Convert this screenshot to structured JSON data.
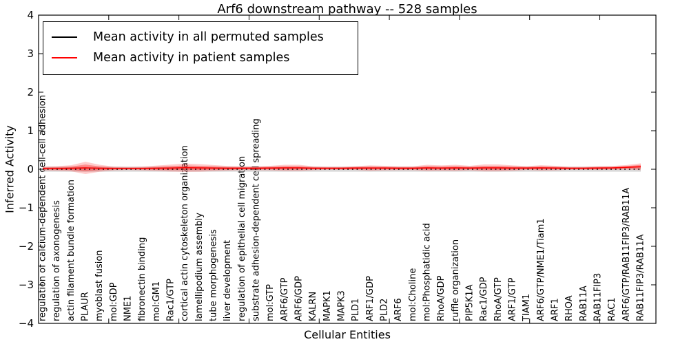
{
  "title": "Arf6 downstream pathway -- 528 samples",
  "xlabel": "Cellular Entities",
  "ylabel": "Inferred Activity",
  "legend": {
    "items": [
      {
        "label": "Mean activity in all permuted samples",
        "color": "#000000"
      },
      {
        "label": "Mean activity in patient samples",
        "color": "#ff0000"
      }
    ]
  },
  "chart_data": {
    "type": "line",
    "title": "Arf6 downstream pathway -- 528 samples",
    "xlabel": "Cellular Entities",
    "ylabel": "Inferred Activity",
    "ylim": [
      -4,
      4
    ],
    "yticks": [
      4,
      3,
      2,
      1,
      0,
      -1,
      -2,
      -3,
      -4
    ],
    "xlim": [
      0,
      44
    ],
    "x_major_ticks": [
      5,
      10,
      15,
      20,
      25,
      30,
      35,
      40
    ],
    "grid": false,
    "legend_position": "upper-left",
    "categories": [
      "regulation of calcium-dependent cell-cell adhesion",
      "regulation of axonogenesis",
      "actin filament bundle formation",
      "PLAUR",
      "myoblast fusion",
      "mol:GDP",
      "NME1",
      "fibronectin binding",
      "mol:GM1",
      "Rac1/GTP",
      "cortical actin cytoskeleton organization",
      "lamellipodium assembly",
      "tube morphogenesis",
      "liver development",
      "regulation of epithelial cell migration",
      "substrate adhesion-dependent cell spreading",
      "mol:GTP",
      "ARF6/GTP",
      "ARF6/GDP",
      "KALRN",
      "MAPK1",
      "MAPK3",
      "PLD1",
      "ARF1/GDP",
      "PLD2",
      "ARF6",
      "mol:Choline",
      "mol:Phosphatidic acid",
      "RhoA/GDP",
      "ruffle organization",
      "PIP5K1A",
      "Rac1/GDP",
      "RhoA/GTP",
      "ARF1/GTP",
      "TIAM1",
      "ARF6/GTP/NME1/Tiam1",
      "ARF1",
      "RHOA",
      "RAB11A",
      "RAB11FIP3",
      "RAC1",
      "ARF6/GTP/RAB11FIP3/RAB11A",
      "RAB11FIP3/RAB11A"
    ],
    "series": [
      {
        "name": "Mean activity in all permuted samples",
        "color": "#000000",
        "line_style": "dotted",
        "values": [
          0,
          0,
          0,
          0,
          0,
          0,
          0,
          0,
          0,
          0,
          0,
          0,
          0,
          0,
          0,
          0,
          0,
          0,
          0,
          0,
          0,
          0,
          0,
          0,
          0,
          0,
          0,
          0,
          0,
          0,
          0,
          0,
          0,
          0,
          0,
          0,
          0,
          0,
          0,
          0,
          0,
          0,
          0
        ],
        "band_half_width": [
          0.065,
          0.065,
          0.065,
          0.065,
          0.065,
          0.065,
          0.065,
          0.065,
          0.065,
          0.065,
          0.065,
          0.065,
          0.065,
          0.065,
          0.065,
          0.065,
          0.065,
          0.065,
          0.065,
          0.065,
          0.065,
          0.065,
          0.065,
          0.065,
          0.065,
          0.065,
          0.065,
          0.065,
          0.065,
          0.065,
          0.065,
          0.065,
          0.065,
          0.065,
          0.065,
          0.065,
          0.065,
          0.065,
          0.065,
          0.065,
          0.065,
          0.065,
          0.065
        ],
        "band_color": "#bbbbbb"
      },
      {
        "name": "Mean activity in patient samples",
        "color": "#ff0000",
        "line_style": "solid",
        "values": [
          0.02,
          0.02,
          0.025,
          0.035,
          0.025,
          0.02,
          0.02,
          0.02,
          0.025,
          0.03,
          0.04,
          0.035,
          0.03,
          0.025,
          0.025,
          0.025,
          0.03,
          0.035,
          0.035,
          0.025,
          0.025,
          0.025,
          0.03,
          0.03,
          0.03,
          0.025,
          0.025,
          0.035,
          0.03,
          0.035,
          0.03,
          0.035,
          0.035,
          0.03,
          0.03,
          0.035,
          0.03,
          0.025,
          0.025,
          0.03,
          0.035,
          0.05,
          0.065
        ],
        "band_half_width": [
          0.05,
          0.06,
          0.08,
          0.16,
          0.09,
          0.05,
          0.04,
          0.05,
          0.07,
          0.09,
          0.11,
          0.1,
          0.08,
          0.06,
          0.05,
          0.05,
          0.06,
          0.08,
          0.08,
          0.05,
          0.04,
          0.04,
          0.05,
          0.07,
          0.06,
          0.05,
          0.05,
          0.08,
          0.07,
          0.08,
          0.06,
          0.09,
          0.09,
          0.07,
          0.05,
          0.07,
          0.06,
          0.04,
          0.04,
          0.05,
          0.05,
          0.06,
          0.09
        ],
        "band_color": "#ff0000"
      }
    ]
  }
}
